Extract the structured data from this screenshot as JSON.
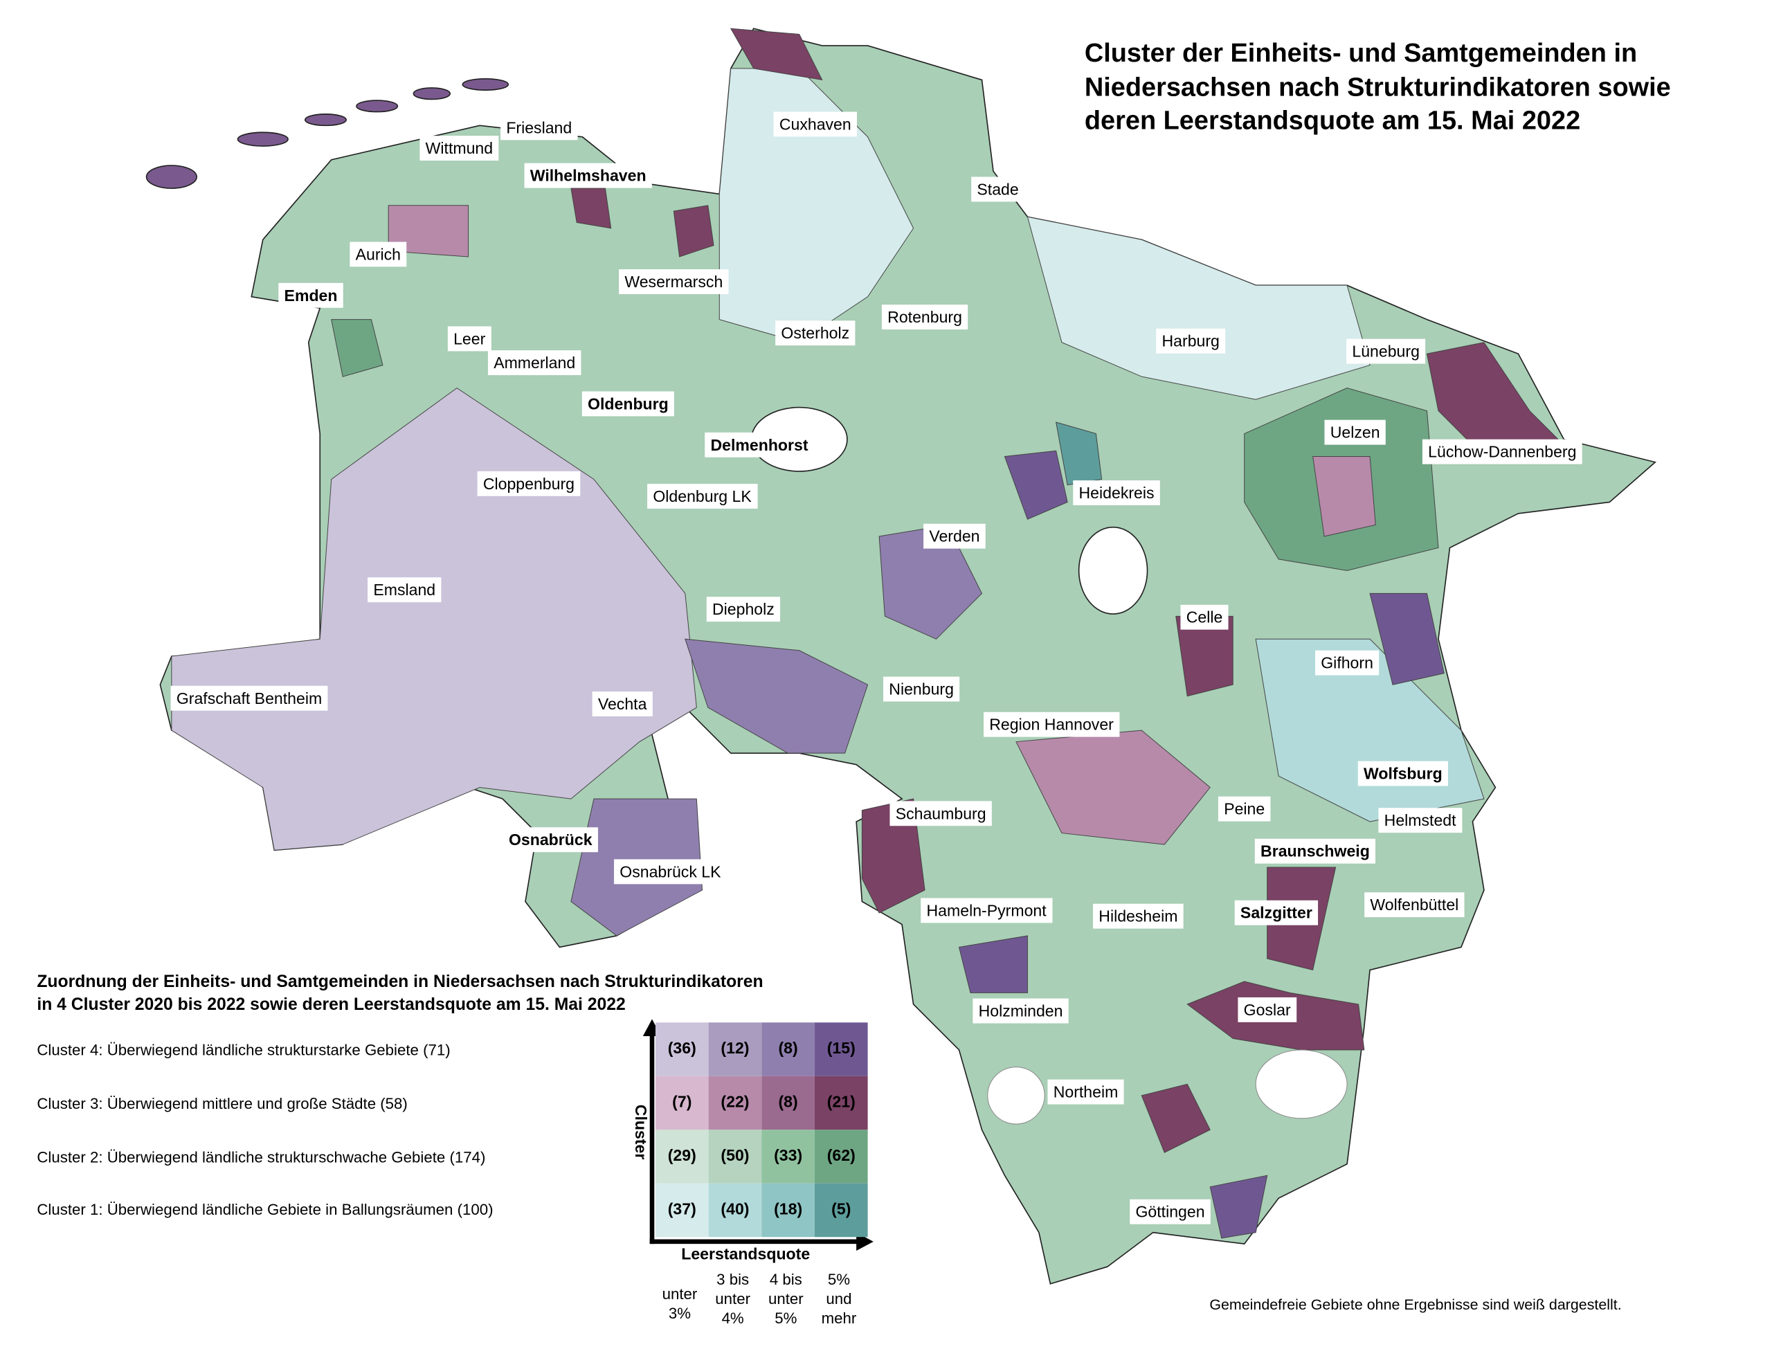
{
  "title": [
    "Cluster der Einheits- und Samtgemeinden in",
    "Niedersachsen nach Strukturindikatoren sowie",
    "deren Leerstandsquote am 15. Mai 2022"
  ],
  "districts": [
    "Cuxhaven",
    "Friesland",
    "Wittmund",
    "Wilhelmshaven",
    "Stade",
    "Aurich",
    "Wesermarsch",
    "Emden",
    "Rotenburg",
    "Osterholz",
    "Leer",
    "Harburg",
    "Lüneburg",
    "Ammerland",
    "Oldenburg",
    "Uelzen",
    "Delmenhorst",
    "Lüchow-Dannenberg",
    "Cloppenburg",
    "Oldenburg LK",
    "Heidekreis",
    "Verden",
    "Emsland",
    "Diepholz",
    "Celle",
    "Gifhorn",
    "Nienburg",
    "Grafschaft Bentheim",
    "Vechta",
    "Region Hannover",
    "Wolfsburg",
    "Peine",
    "Schaumburg",
    "Helmstedt",
    "Osnabrück",
    "Braunschweig",
    "Osnabrück LK",
    "Hameln-Pyrmont",
    "Salzgitter",
    "Hildesheim",
    "Wolfenbüttel",
    "Holzminden",
    "Goslar",
    "Northeim",
    "Göttingen"
  ],
  "legend": {
    "title": [
      "Zuordnung der Einheits- und Samtgemeinden in Niedersachsen nach Strukturindikatoren",
      "in 4 Cluster 2020 bis 2022 sowie deren Leerstandsquote am 15. Mai 2022"
    ],
    "clusters": [
      "Cluster 4: Überwiegend ländliche strukturstarke Gebiete (71)",
      "Cluster 3: Überwiegend mittlere und große Städte (58)",
      "Cluster 2: Überwiegend ländliche strukturschwache Gebiete (174)",
      "Cluster 1: Überwiegend ländliche Gebiete in Ballungsräumen (100)"
    ],
    "matrix": [
      [
        "(36)",
        "(12)",
        "(8)",
        "(15)"
      ],
      [
        "(7)",
        "(22)",
        "(8)",
        "(21)"
      ],
      [
        "(29)",
        "(50)",
        "(33)",
        "(62)"
      ],
      [
        "(37)",
        "(40)",
        "(18)",
        "(5)"
      ]
    ],
    "y_axis": "Cluster",
    "x_axis": "Leerstandsquote",
    "columns": [
      [
        "unter",
        "3%"
      ],
      [
        "3 bis",
        "unter",
        "4%"
      ],
      [
        "4 bis",
        "unter",
        "5%"
      ],
      [
        "5%",
        "und",
        "mehr"
      ]
    ]
  },
  "note": "Gemeindefreie Gebiete ohne Ergebnisse sind weiß dargestellt."
}
